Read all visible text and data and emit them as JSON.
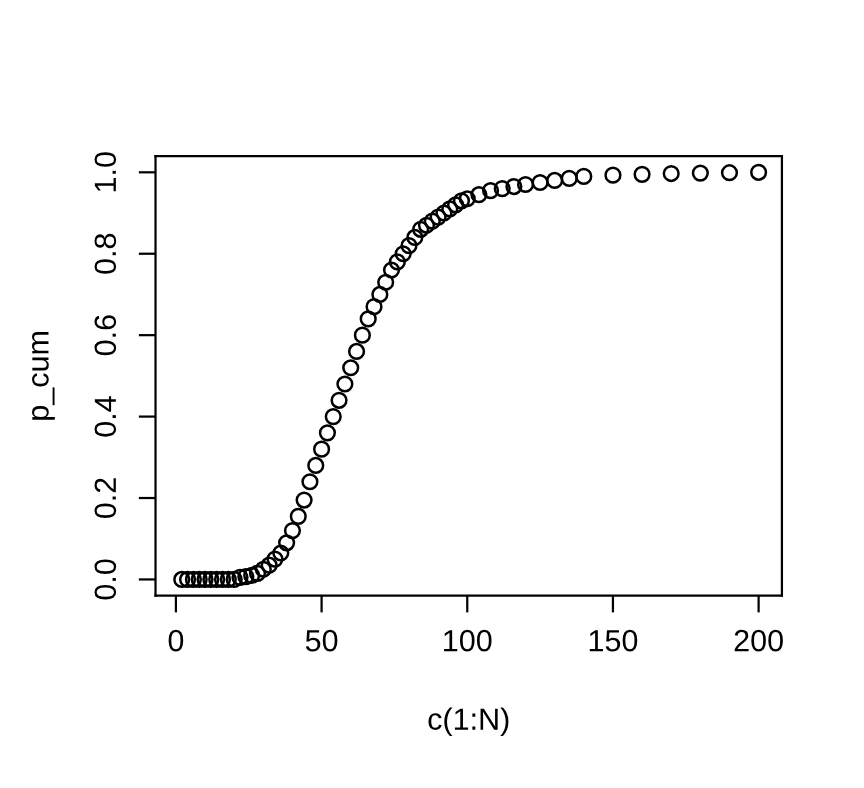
{
  "chart_data": {
    "type": "scatter",
    "xlabel": "c(1:N)",
    "ylabel": "p_cum",
    "x": [
      2,
      4,
      6,
      8,
      10,
      12,
      14,
      16,
      18,
      20,
      22,
      24,
      26,
      28,
      30,
      32,
      34,
      36,
      38,
      40,
      42,
      44,
      46,
      48,
      50,
      52,
      54,
      56,
      58,
      60,
      62,
      64,
      66,
      68,
      70,
      72,
      74,
      76,
      78,
      80,
      82,
      84,
      86,
      88,
      90,
      92,
      94,
      96,
      98,
      100,
      104,
      108,
      112,
      116,
      120,
      125,
      130,
      135,
      140,
      150,
      160,
      170,
      180,
      190,
      200
    ],
    "series": [
      {
        "color": "#000000",
        "values": [
          0,
          0,
          0,
          0,
          0,
          0,
          0,
          0,
          0,
          0,
          0.005,
          0.007,
          0.01,
          0.015,
          0.025,
          0.035,
          0.05,
          0.065,
          0.09,
          0.12,
          0.155,
          0.195,
          0.24,
          0.28,
          0.32,
          0.36,
          0.4,
          0.44,
          0.48,
          0.52,
          0.56,
          0.6,
          0.64,
          0.67,
          0.7,
          0.73,
          0.76,
          0.78,
          0.8,
          0.82,
          0.84,
          0.86,
          0.87,
          0.88,
          0.89,
          0.9,
          0.91,
          0.92,
          0.93,
          0.935,
          0.945,
          0.955,
          0.96,
          0.965,
          0.97,
          0.975,
          0.98,
          0.985,
          0.99,
          0.993,
          0.995,
          0.997,
          0.998,
          0.999,
          1.0
        ]
      }
    ],
    "marker": "circle",
    "grid": false,
    "legend": false,
    "xlim": [
      -7,
      208
    ],
    "xticks": [
      0,
      50,
      100,
      150,
      200
    ],
    "ylim": [
      -0.04,
      1.04
    ],
    "yticks": [
      {
        "value": 0,
        "label": "0.0"
      },
      {
        "value": 0.2,
        "label": "0.2"
      },
      {
        "value": 0.4,
        "label": "0.4"
      },
      {
        "value": 0.6,
        "label": "0.6"
      },
      {
        "value": 0.8,
        "label": "0.8"
      },
      {
        "value": 1,
        "label": "1.0"
      }
    ]
  }
}
